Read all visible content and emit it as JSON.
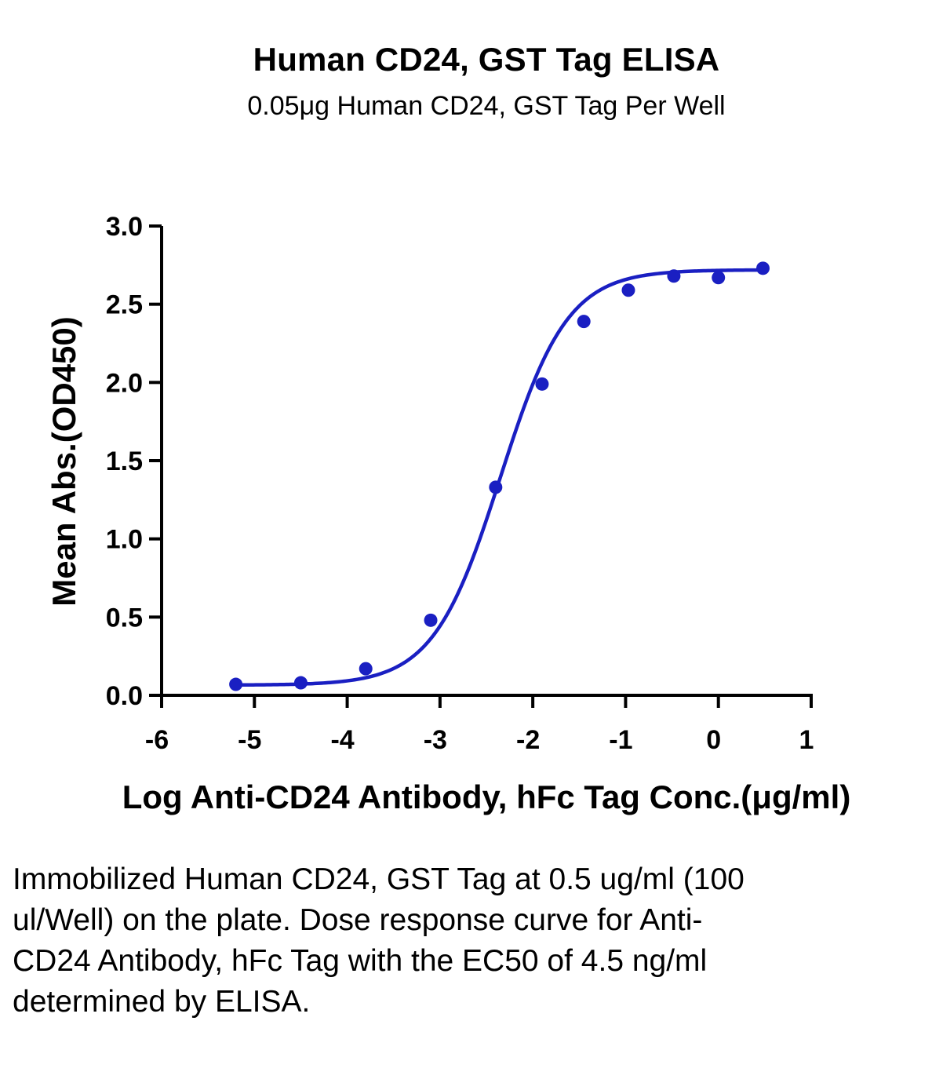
{
  "chart_data": {
    "type": "scatter",
    "title": "Human CD24, GST Tag ELISA",
    "subtitle": "0.05μg Human CD24, GST Tag Per Well",
    "xlabel": "Log Anti-CD24 Antibody, hFc Tag Conc.(μg/ml)",
    "ylabel": "Mean Abs.(OD450)",
    "xlim": [
      -6,
      1
    ],
    "ylim": [
      0,
      3.0
    ],
    "xticks": [
      "-6",
      "-5",
      "-4",
      "-3",
      "-2",
      "-1",
      "0",
      "1"
    ],
    "yticks": [
      "0.0",
      "0.5",
      "1.0",
      "1.5",
      "2.0",
      "2.5",
      "3.0"
    ],
    "grid": false,
    "series": [
      {
        "points": [
          {
            "x": -5.2,
            "y": 0.07
          },
          {
            "x": -4.5,
            "y": 0.08
          },
          {
            "x": -3.8,
            "y": 0.17
          },
          {
            "x": -3.1,
            "y": 0.48
          },
          {
            "x": -2.4,
            "y": 1.33
          },
          {
            "x": -1.9,
            "y": 1.99
          },
          {
            "x": -1.45,
            "y": 2.39
          },
          {
            "x": -0.97,
            "y": 2.59
          },
          {
            "x": -0.48,
            "y": 2.68
          },
          {
            "x": 0.0,
            "y": 2.67
          },
          {
            "x": 0.48,
            "y": 2.73
          }
        ],
        "fit": {
          "model": "4PL",
          "bottom": 0.065,
          "top": 2.72,
          "log_ec50": -2.35,
          "hill": 1.2
        }
      }
    ],
    "color": "#1a1fc2"
  },
  "caption": "Immobilized Human CD24, GST Tag at 0.5 ug/ml (100 ul/Well) on the plate. Dose response curve for Anti-CD24 Antibody, hFc Tag with the EC50 of 4.5 ng/ml determined by ELISA."
}
